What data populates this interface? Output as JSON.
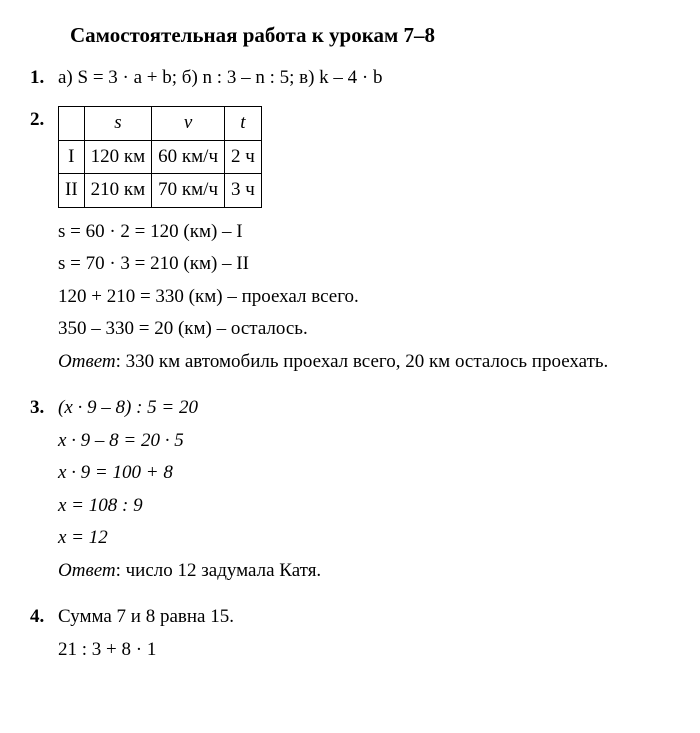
{
  "title": "Самостоятельная работа к урокам 7–8",
  "problems": {
    "p1": {
      "num": "1.",
      "text": "а) S = 3 · a + b; б) n : 3 – n : 5; в) k – 4 · b"
    },
    "p2": {
      "num": "2.",
      "table": {
        "headers": [
          "",
          "s",
          "v",
          "t"
        ],
        "rows": [
          [
            "I",
            "120 км",
            "60 км/ч",
            "2 ч"
          ],
          [
            "II",
            "210 км",
            "70 км/ч",
            "3 ч"
          ]
        ]
      },
      "lines": [
        "s = 60 · 2 = 120 (км) – I",
        "s = 70 · 3 = 210 (км) – II",
        "120 + 210 = 330 (км) – проехал всего.",
        "350 – 330 = 20 (км) – осталось."
      ],
      "answer_label": "Ответ",
      "answer_text": ": 330 км автомобиль проехал всего, 20 км осталось проехать."
    },
    "p3": {
      "num": "3.",
      "lines": [
        "(x · 9 – 8) : 5 = 20",
        "x · 9 – 8 = 20 · 5",
        "x · 9 = 100 + 8",
        "x = 108 : 9",
        "x = 12"
      ],
      "answer_label": "Ответ",
      "answer_text": ": число 12 задумала Катя."
    },
    "p4": {
      "num": "4.",
      "lines": [
        "Сумма 7 и 8 равна 15.",
        "21 : 3 + 8 · 1"
      ]
    }
  }
}
